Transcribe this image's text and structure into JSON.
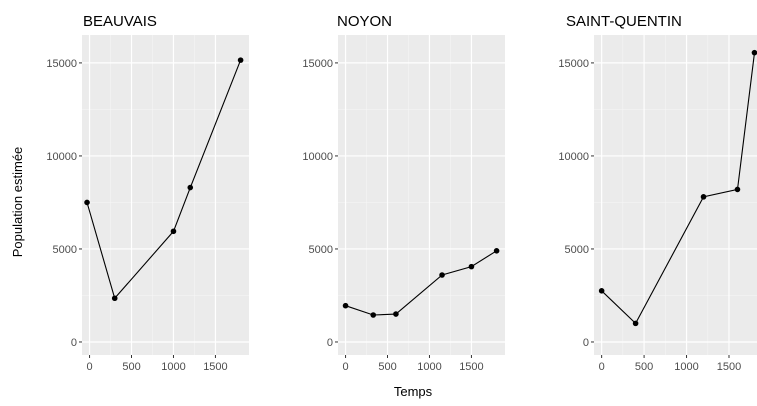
{
  "chart_data": {
    "type": "line",
    "layout": "facets",
    "xlabel": "Temps",
    "ylabel": "Population estimée",
    "ylim": [
      -700,
      16500
    ],
    "y_ticks": [
      0,
      5000,
      10000,
      15000
    ],
    "x_ticks": [
      0,
      500,
      1000,
      1500
    ],
    "grid": true,
    "background": "#ebebeb",
    "line_color": "#000000",
    "point_color": "#000000",
    "panels": [
      {
        "title": "BEAUVAIS",
        "xlim": [
          -90,
          1900
        ],
        "x": [
          -30,
          300,
          1000,
          1200,
          1800
        ],
        "y": [
          7500,
          2350,
          5950,
          8300,
          15150
        ]
      },
      {
        "title": "NOYON",
        "xlim": [
          -90,
          1900
        ],
        "x": [
          0,
          330,
          600,
          1150,
          1500,
          1800
        ],
        "y": [
          1950,
          1450,
          1500,
          3600,
          4050,
          4900
        ]
      },
      {
        "title": "SAINT-QUENTIN",
        "xlim": [
          -90,
          1830
        ],
        "x": [
          0,
          400,
          1200,
          1600,
          1800
        ],
        "y": [
          2750,
          1000,
          7800,
          8200,
          15550
        ]
      }
    ]
  }
}
